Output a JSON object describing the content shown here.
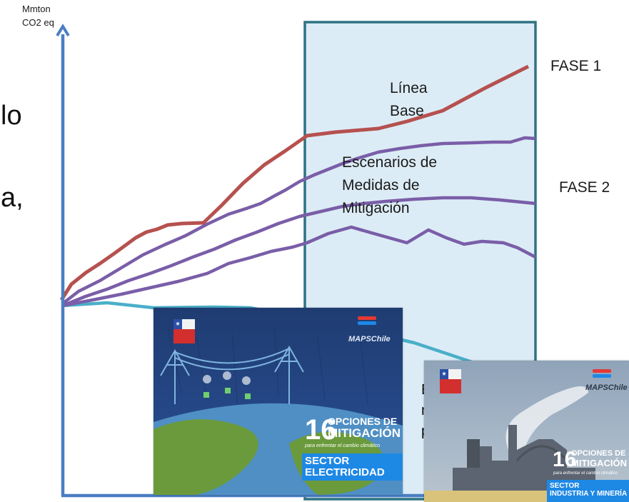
{
  "axis": {
    "y_label_line1": "Mmton",
    "y_label_line2": "CO2 eq"
  },
  "labels": {
    "phase1": "FASE 1",
    "phase2": "FASE 2",
    "baseline_line1": "Línea",
    "baseline_line2": "Base",
    "scenarios_line1": "Escenarios de",
    "scenarios_line2": "Medidas de",
    "scenarios_line3": "Mitigación"
  },
  "fragments": {
    "text_a": "lo",
    "text_b": "a,",
    "text_c1": "E",
    "text_c2": "n",
    "text_c3": "p"
  },
  "colors": {
    "baseline": "#b5514f",
    "scenarios": "#7a5ea8",
    "lower": "#4aafc9",
    "axis": "#4a7ec3",
    "phase_box_fill": "#dcecf6",
    "phase_box_border": "#2f7383"
  },
  "covers": {
    "electricity": {
      "brand": "MAPSChile",
      "number": "16",
      "title_line1": "OPCIONES DE",
      "title_line2": "MITIGACIÓN",
      "subtitle": "para enfrentar el cambio climático",
      "sector_line1": "SECTOR",
      "sector_line2": "ELECTRICIDAD"
    },
    "industry": {
      "brand": "MAPSChile",
      "number": "16",
      "title_line1": "OPCIONES DE",
      "title_line2": "MITIGACIÓN",
      "subtitle": "para enfrentar el cambio climático",
      "sector_line1": "SECTOR",
      "sector_line2": "INDUSTRIA Y MINERÍA"
    }
  }
}
